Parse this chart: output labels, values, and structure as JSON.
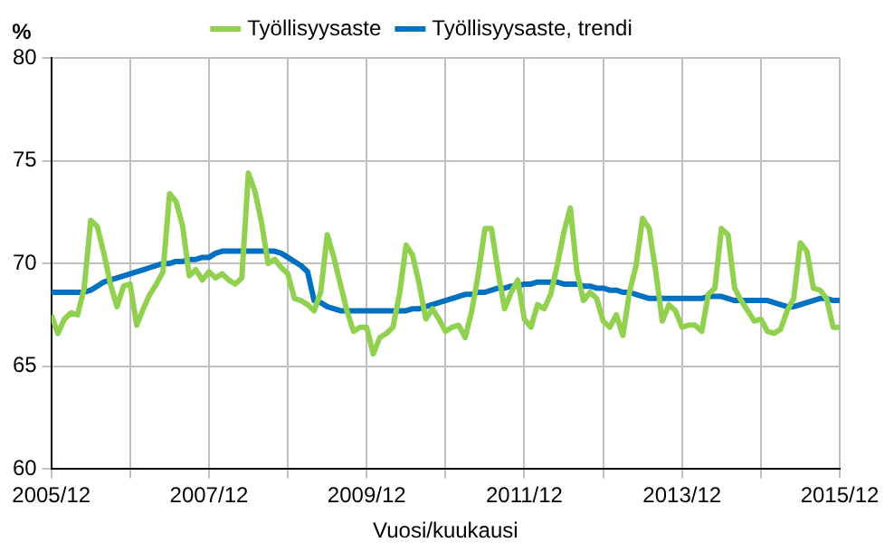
{
  "chart_data": {
    "type": "line",
    "xlabel": "Vuosi/kuukausi",
    "ylabel": "%",
    "x": [
      "2005-12",
      "2006-01",
      "2006-02",
      "2006-03",
      "2006-04",
      "2006-05",
      "2006-06",
      "2006-07",
      "2006-08",
      "2006-09",
      "2006-10",
      "2006-11",
      "2006-12",
      "2007-01",
      "2007-02",
      "2007-03",
      "2007-04",
      "2007-05",
      "2007-06",
      "2007-07",
      "2007-08",
      "2007-09",
      "2007-10",
      "2007-11",
      "2007-12",
      "2008-01",
      "2008-02",
      "2008-03",
      "2008-04",
      "2008-05",
      "2008-06",
      "2008-07",
      "2008-08",
      "2008-09",
      "2008-10",
      "2008-11",
      "2008-12",
      "2009-01",
      "2009-02",
      "2009-03",
      "2009-04",
      "2009-05",
      "2009-06",
      "2009-07",
      "2009-08",
      "2009-09",
      "2009-10",
      "2009-11",
      "2009-12",
      "2010-01",
      "2010-02",
      "2010-03",
      "2010-04",
      "2010-05",
      "2010-06",
      "2010-07",
      "2010-08",
      "2010-09",
      "2010-10",
      "2010-11",
      "2010-12",
      "2011-01",
      "2011-02",
      "2011-03",
      "2011-04",
      "2011-05",
      "2011-06",
      "2011-07",
      "2011-08",
      "2011-09",
      "2011-10",
      "2011-11",
      "2011-12",
      "2012-01",
      "2012-02",
      "2012-03",
      "2012-04",
      "2012-05",
      "2012-06",
      "2012-07",
      "2012-08",
      "2012-09",
      "2012-10",
      "2012-11",
      "2012-12",
      "2013-01",
      "2013-02",
      "2013-03",
      "2013-04",
      "2013-05",
      "2013-06",
      "2013-07",
      "2013-08",
      "2013-09",
      "2013-10",
      "2013-11",
      "2013-12",
      "2014-01",
      "2014-02",
      "2014-03",
      "2014-04",
      "2014-05",
      "2014-06",
      "2014-07",
      "2014-08",
      "2014-09",
      "2014-10",
      "2014-11",
      "2014-12",
      "2015-01",
      "2015-02",
      "2015-03",
      "2015-04",
      "2015-05",
      "2015-06",
      "2015-07",
      "2015-08",
      "2015-09",
      "2015-10",
      "2015-11",
      "2015-12"
    ],
    "series": [
      {
        "name": "Työllisyysaste",
        "color": "#92d050",
        "values": [
          67.5,
          66.6,
          67.3,
          67.6,
          67.5,
          68.8,
          72.1,
          71.8,
          70.5,
          69.0,
          67.9,
          68.9,
          69.0,
          67.0,
          67.8,
          68.5,
          69.0,
          69.6,
          73.4,
          73.0,
          71.8,
          69.4,
          69.7,
          69.2,
          69.6,
          69.3,
          69.5,
          69.2,
          69.0,
          69.3,
          74.4,
          73.5,
          72.0,
          70.0,
          70.2,
          69.8,
          69.5,
          68.3,
          68.2,
          68.0,
          67.7,
          68.6,
          71.4,
          70.3,
          69.0,
          67.7,
          66.7,
          66.9,
          66.9,
          65.6,
          66.4,
          66.6,
          66.9,
          68.5,
          70.9,
          70.4,
          69.0,
          67.3,
          67.8,
          67.3,
          66.7,
          66.9,
          67.0,
          66.4,
          67.7,
          69.5,
          71.7,
          71.7,
          69.6,
          67.8,
          68.6,
          69.2,
          67.3,
          66.9,
          68.0,
          67.8,
          68.5,
          69.9,
          71.5,
          72.7,
          69.6,
          68.2,
          68.6,
          68.3,
          67.2,
          66.9,
          67.5,
          66.5,
          68.6,
          69.9,
          72.2,
          71.7,
          69.6,
          67.2,
          68.0,
          67.7,
          66.9,
          67.0,
          67.0,
          66.7,
          68.5,
          68.8,
          71.7,
          71.4,
          68.8,
          68.2,
          67.7,
          67.2,
          67.3,
          66.7,
          66.6,
          66.8,
          67.7,
          68.3,
          71.0,
          70.6,
          68.8,
          68.7,
          68.3,
          66.9,
          66.9
        ]
      },
      {
        "name": "Työllisyysaste, trendi",
        "color": "#0070c0",
        "values": [
          68.6,
          68.6,
          68.6,
          68.6,
          68.6,
          68.6,
          68.7,
          68.9,
          69.1,
          69.2,
          69.3,
          69.4,
          69.5,
          69.6,
          69.7,
          69.8,
          69.9,
          70.0,
          70.0,
          70.1,
          70.1,
          70.2,
          70.2,
          70.3,
          70.3,
          70.5,
          70.6,
          70.6,
          70.6,
          70.6,
          70.6,
          70.6,
          70.6,
          70.6,
          70.6,
          70.5,
          70.3,
          70.1,
          69.9,
          69.6,
          68.2,
          68.1,
          67.9,
          67.8,
          67.7,
          67.7,
          67.7,
          67.7,
          67.7,
          67.7,
          67.7,
          67.7,
          67.7,
          67.7,
          67.7,
          67.8,
          67.8,
          67.9,
          68.0,
          68.1,
          68.2,
          68.3,
          68.4,
          68.5,
          68.5,
          68.6,
          68.6,
          68.7,
          68.8,
          68.8,
          68.9,
          68.9,
          69.0,
          69.0,
          69.1,
          69.1,
          69.1,
          69.1,
          69.0,
          69.0,
          69.0,
          68.9,
          68.9,
          68.8,
          68.8,
          68.7,
          68.7,
          68.6,
          68.6,
          68.5,
          68.4,
          68.3,
          68.3,
          68.3,
          68.3,
          68.3,
          68.3,
          68.3,
          68.3,
          68.3,
          68.4,
          68.4,
          68.4,
          68.3,
          68.2,
          68.2,
          68.2,
          68.2,
          68.2,
          68.2,
          68.1,
          68.0,
          67.9,
          67.9,
          68.0,
          68.1,
          68.2,
          68.3,
          68.3,
          68.2,
          68.2
        ]
      }
    ],
    "xlim": [
      "2005-12",
      "2015-12"
    ],
    "xticks": [
      {
        "value": "2005-12",
        "label": "2005/12"
      },
      {
        "value": "2006-12",
        "label": null
      },
      {
        "value": "2007-12",
        "label": "2007/12"
      },
      {
        "value": "2008-12",
        "label": null
      },
      {
        "value": "2009-12",
        "label": "2009/12"
      },
      {
        "value": "2010-12",
        "label": null
      },
      {
        "value": "2011-12",
        "label": "2011/12"
      },
      {
        "value": "2012-12",
        "label": null
      },
      {
        "value": "2013-12",
        "label": "2013/12"
      },
      {
        "value": "2014-12",
        "label": null
      },
      {
        "value": "2015-12",
        "label": "2015/12"
      }
    ],
    "ylim": [
      60,
      80
    ],
    "yticks": [
      60,
      65,
      70,
      75,
      80
    ],
    "grid": true,
    "legend": "top"
  }
}
